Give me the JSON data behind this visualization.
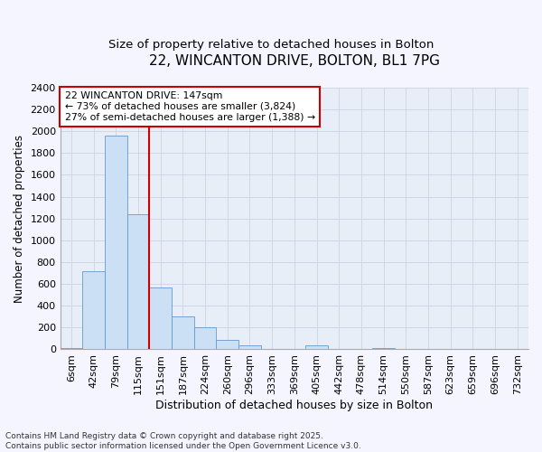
{
  "title1": "22, WINCANTON DRIVE, BOLTON, BL1 7PG",
  "title2": "Size of property relative to detached houses in Bolton",
  "xlabel": "Distribution of detached houses by size in Bolton",
  "ylabel": "Number of detached properties",
  "bar_labels": [
    "6sqm",
    "42sqm",
    "79sqm",
    "115sqm",
    "151sqm",
    "187sqm",
    "224sqm",
    "260sqm",
    "296sqm",
    "333sqm",
    "369sqm",
    "405sqm",
    "442sqm",
    "478sqm",
    "514sqm",
    "550sqm",
    "587sqm",
    "623sqm",
    "659sqm",
    "696sqm",
    "732sqm"
  ],
  "bar_values": [
    10,
    720,
    1960,
    1240,
    570,
    300,
    200,
    85,
    40,
    0,
    0,
    35,
    0,
    0,
    10,
    0,
    0,
    0,
    0,
    0,
    0
  ],
  "bar_color": "#cce0f5",
  "bar_edge_color": "#6699cc",
  "grid_color": "#d0d8e8",
  "bg_color": "#e8eef8",
  "fig_bg_color": "#f5f5ff",
  "vline_color": "#cc0000",
  "vline_x_index": 4,
  "annotation_text": "22 WINCANTON DRIVE: 147sqm\n← 73% of detached houses are smaller (3,824)\n27% of semi-detached houses are larger (1,388) →",
  "annotation_box_color": "#ffffff",
  "annotation_box_edge": "#cc0000",
  "ylim": [
    0,
    2400
  ],
  "yticks": [
    0,
    200,
    400,
    600,
    800,
    1000,
    1200,
    1400,
    1600,
    1800,
    2000,
    2200,
    2400
  ],
  "footer": "Contains HM Land Registry data © Crown copyright and database right 2025.\nContains public sector information licensed under the Open Government Licence v3.0.",
  "title1_fontsize": 11,
  "title2_fontsize": 9.5,
  "xlabel_fontsize": 9,
  "ylabel_fontsize": 8.5,
  "tick_fontsize": 8,
  "annotation_fontsize": 7.8,
  "footer_fontsize": 6.5
}
